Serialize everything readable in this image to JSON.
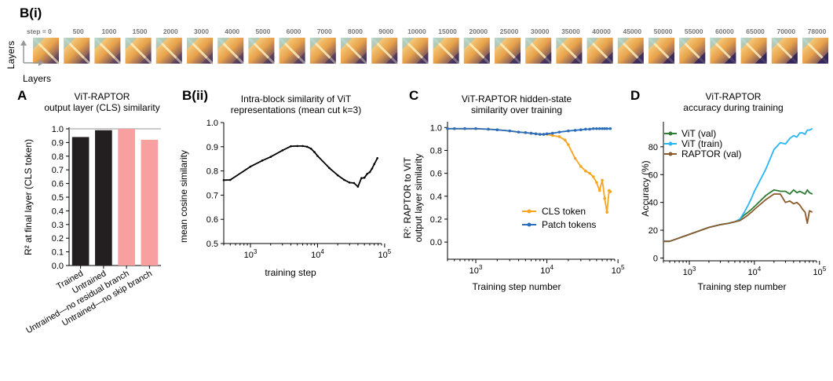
{
  "panels": {
    "B_i": {
      "label": "B(i)",
      "steps": [
        "step = 0",
        "500",
        "1000",
        "1500",
        "2000",
        "3000",
        "4000",
        "5000",
        "6000",
        "7000",
        "8000",
        "9000",
        "10000",
        "15000",
        "20000",
        "25000",
        "30000",
        "35000",
        "40000",
        "45000",
        "50000",
        "55000",
        "60000",
        "65000",
        "70000",
        "78000"
      ],
      "axis_x": "Layers",
      "axis_y": "Layers"
    }
  },
  "chart_data": [
    {
      "id": "A",
      "type": "bar",
      "panel_label": "A",
      "title": "ViT-RAPTOR\noutput layer (CLS) similarity",
      "categories": [
        "Trained",
        "Untrained",
        "Untrained—no residual branch",
        "Untrained—no skip branch"
      ],
      "values": [
        0.94,
        0.99,
        1.0,
        0.92
      ],
      "colors": [
        "#231f20",
        "#231f20",
        "#f8a0a0",
        "#f8a0a0"
      ],
      "reference_line": 1.0,
      "ylabel": "R² at final layer (CLS token)",
      "ylim": [
        0,
        1.0
      ],
      "yticks": [
        "0.0",
        "0.1",
        "0.2",
        "0.3",
        "0.4",
        "0.5",
        "0.6",
        "0.7",
        "0.8",
        "0.9",
        "1.0"
      ]
    },
    {
      "id": "Bii",
      "type": "line",
      "panel_label": "B(ii)",
      "title": "Intra-block similarity of ViT\nrepresentations (mean cut k=3)",
      "xlabel": "training step",
      "ylabel": "mean cosine similarity",
      "x_scale": "log",
      "xlim": [
        400,
        90000
      ],
      "ylim": [
        0.5,
        1.0
      ],
      "yticks": [
        "0.5",
        "0.6",
        "0.7",
        "0.8",
        "0.9",
        "1.0"
      ],
      "xticks": [
        "10³",
        "10⁴",
        "10⁵"
      ],
      "series": [
        {
          "color": "#000000",
          "x": [
            400,
            500,
            1000,
            1500,
            2000,
            3000,
            4000,
            5000,
            6000,
            7000,
            8000,
            9000,
            10000,
            15000,
            20000,
            25000,
            30000,
            35000,
            40000,
            45000,
            50000,
            55000,
            60000,
            65000,
            70000,
            78000
          ],
          "y": [
            0.762,
            0.763,
            0.818,
            0.843,
            0.858,
            0.885,
            0.902,
            0.903,
            0.903,
            0.9,
            0.892,
            0.878,
            0.862,
            0.812,
            0.782,
            0.763,
            0.752,
            0.75,
            0.735,
            0.77,
            0.772,
            0.788,
            0.795,
            0.81,
            0.828,
            0.853
          ]
        }
      ]
    },
    {
      "id": "C",
      "type": "line",
      "panel_label": "C",
      "title": "ViT-RAPTOR hidden-state\nsimilarity over training",
      "xlabel": "Training step number",
      "ylabel": "R²: RAPTOR to ViT\noutput layer similarity",
      "x_scale": "log",
      "xlim": [
        400,
        90000
      ],
      "ylim": [
        -0.15,
        1.05
      ],
      "yticks": [
        "0.0",
        "0.2",
        "0.4",
        "0.6",
        "0.8",
        "1.0"
      ],
      "xticks": [
        "10³",
        "10⁴",
        "10⁵"
      ],
      "legend": "lower-right",
      "series": [
        {
          "name": "CLS token",
          "color": "#f5a623",
          "x": [
            400,
            500,
            700,
            1000,
            1500,
            2000,
            3000,
            4000,
            5000,
            6000,
            7000,
            8000,
            9000,
            10000,
            12000,
            15000,
            18000,
            20000,
            25000,
            30000,
            35000,
            40000,
            45000,
            50000,
            55000,
            60000,
            65000,
            70000,
            75000,
            78000
          ],
          "y": [
            0.99,
            0.99,
            0.99,
            0.99,
            0.985,
            0.98,
            0.97,
            0.96,
            0.955,
            0.95,
            0.945,
            0.94,
            0.94,
            0.94,
            0.93,
            0.92,
            0.89,
            0.85,
            0.73,
            0.66,
            0.62,
            0.6,
            0.57,
            0.52,
            0.45,
            0.54,
            0.38,
            0.26,
            0.45,
            0.44
          ]
        },
        {
          "name": "Patch tokens",
          "color": "#2a6ebb",
          "x": [
            400,
            500,
            700,
            1000,
            1500,
            2000,
            3000,
            4000,
            5000,
            6000,
            7000,
            8000,
            9000,
            10000,
            12000,
            15000,
            20000,
            25000,
            30000,
            35000,
            40000,
            45000,
            50000,
            55000,
            60000,
            65000,
            70000,
            78000
          ],
          "y": [
            0.99,
            0.99,
            0.99,
            0.99,
            0.985,
            0.98,
            0.97,
            0.96,
            0.955,
            0.95,
            0.945,
            0.94,
            0.94,
            0.945,
            0.95,
            0.96,
            0.97,
            0.975,
            0.98,
            0.985,
            0.985,
            0.99,
            0.99,
            0.99,
            0.99,
            0.99,
            0.99,
            0.99
          ]
        }
      ]
    },
    {
      "id": "D",
      "type": "line",
      "panel_label": "D",
      "title": "ViT-RAPTOR\naccuracy during training",
      "xlabel": "Training step number",
      "ylabel": "Accuracy (%)",
      "x_scale": "log",
      "xlim": [
        400,
        90000
      ],
      "ylim": [
        -2,
        98
      ],
      "yticks": [
        "0",
        "20",
        "40",
        "60",
        "80"
      ],
      "xticks": [
        "10³",
        "10⁴",
        "10⁵"
      ],
      "legend": "top-left",
      "series": [
        {
          "name": "ViT (val)",
          "color": "#2e7d32",
          "x": [
            400,
            500,
            1000,
            1500,
            2000,
            3000,
            4000,
            5000,
            6000,
            7000,
            8000,
            9000,
            10000,
            15000,
            20000,
            25000,
            30000,
            35000,
            40000,
            45000,
            50000,
            55000,
            60000,
            65000,
            70000,
            78000
          ],
          "y": [
            12,
            12,
            17,
            20,
            22,
            24,
            25,
            26,
            28,
            31,
            33,
            35,
            37,
            45,
            49,
            48,
            48,
            46,
            49,
            47,
            48,
            47,
            46,
            49,
            47,
            46
          ]
        },
        {
          "name": "ViT (train)",
          "color": "#29b6f6",
          "x": [
            400,
            500,
            1000,
            1500,
            2000,
            3000,
            4000,
            5000,
            6000,
            7000,
            8000,
            9000,
            10000,
            15000,
            20000,
            25000,
            30000,
            35000,
            40000,
            45000,
            50000,
            55000,
            60000,
            65000,
            70000,
            78000
          ],
          "y": [
            12,
            12,
            17,
            20,
            22,
            24,
            25,
            26,
            28,
            33,
            38,
            43,
            48,
            64,
            78,
            83,
            82,
            86,
            88,
            87,
            90,
            90,
            89,
            92,
            92,
            93
          ]
        },
        {
          "name": "RAPTOR (val)",
          "color": "#8b5a2b",
          "x": [
            400,
            500,
            1000,
            1500,
            2000,
            3000,
            4000,
            5000,
            6000,
            7000,
            8000,
            9000,
            10000,
            15000,
            20000,
            25000,
            30000,
            35000,
            40000,
            45000,
            50000,
            55000,
            60000,
            65000,
            70000,
            78000
          ],
          "y": [
            12,
            12,
            17,
            20,
            22,
            24,
            25,
            26,
            27,
            29,
            31,
            33,
            35,
            42,
            46,
            46,
            40,
            41,
            39,
            40,
            38,
            35,
            33,
            25,
            34,
            33
          ]
        }
      ]
    }
  ]
}
